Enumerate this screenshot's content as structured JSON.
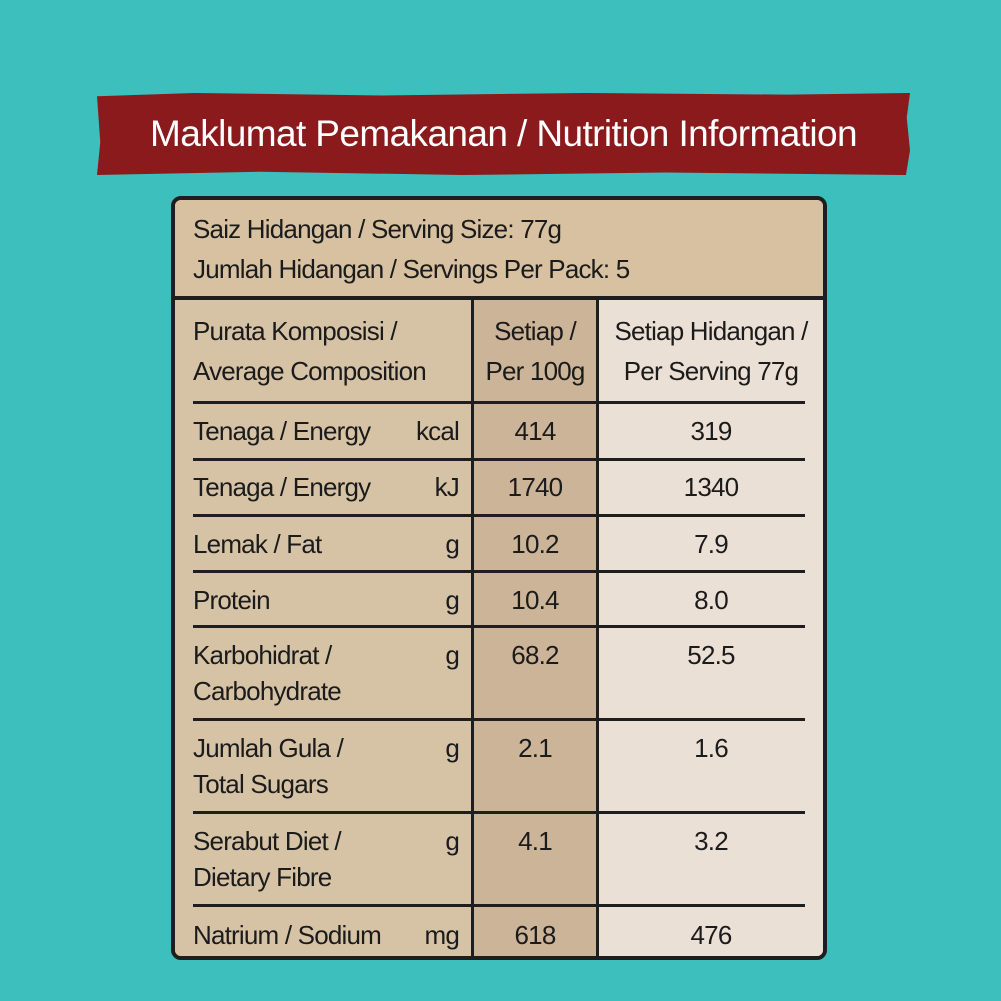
{
  "title": "Maklumat Pemakanan / Nutrition Information",
  "serving": {
    "size": "Saiz Hidangan / Serving Size: 77g",
    "per_pack": "Jumlah Hidangan / Servings Per Pack: 5"
  },
  "columns": {
    "composition_line1": "Purata Komposisi /",
    "composition_line2": "Average Composition",
    "per100_line1": "Setiap /",
    "per100_line2": "Per 100g",
    "perserving_line1": "Setiap Hidangan /",
    "perserving_line2": "Per Serving 77g"
  },
  "rows": [
    {
      "label1": "Tenaga / Energy",
      "label2": "",
      "unit": "kcal",
      "per100": "414",
      "perserving": "319"
    },
    {
      "label1": "Tenaga / Energy",
      "label2": "",
      "unit": "kJ",
      "per100": "1740",
      "perserving": "1340"
    },
    {
      "label1": "Lemak / Fat",
      "label2": "",
      "unit": "g",
      "per100": "10.2",
      "perserving": "7.9"
    },
    {
      "label1": "Protein",
      "label2": "",
      "unit": "g",
      "per100": "10.4",
      "perserving": "8.0"
    },
    {
      "label1": "Karbohidrat /",
      "label2": "Carbohydrate",
      "unit": "g",
      "per100": "68.2",
      "perserving": "52.5"
    },
    {
      "label1": "Jumlah Gula /",
      "label2": "Total Sugars",
      "unit": "g",
      "per100": "2.1",
      "perserving": "1.6"
    },
    {
      "label1": "Serabut Diet /",
      "label2": "Dietary Fibre",
      "unit": "g",
      "per100": "4.1",
      "perserving": "3.2"
    },
    {
      "label1": "Natrium / Sodium",
      "label2": "",
      "unit": "mg",
      "per100": "618",
      "perserving": "476"
    }
  ]
}
